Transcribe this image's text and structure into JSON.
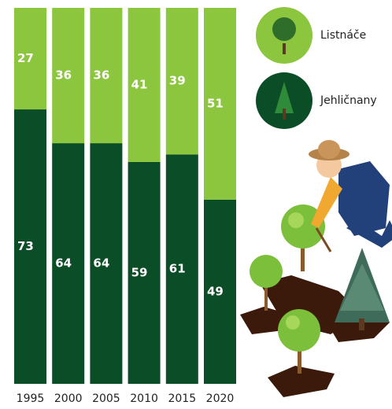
{
  "chart_data": {
    "type": "bar",
    "stacked": true,
    "categories": [
      "1995",
      "2000",
      "2005",
      "2010",
      "2015",
      "2020"
    ],
    "series": [
      {
        "name": "Jehličnany",
        "color": "#0b4d26",
        "values": [
          73,
          64,
          64,
          59,
          61,
          49
        ]
      },
      {
        "name": "Listnáče",
        "color": "#8cc63f",
        "values": [
          27,
          36,
          36,
          41,
          39,
          51
        ]
      }
    ]
  }
}
